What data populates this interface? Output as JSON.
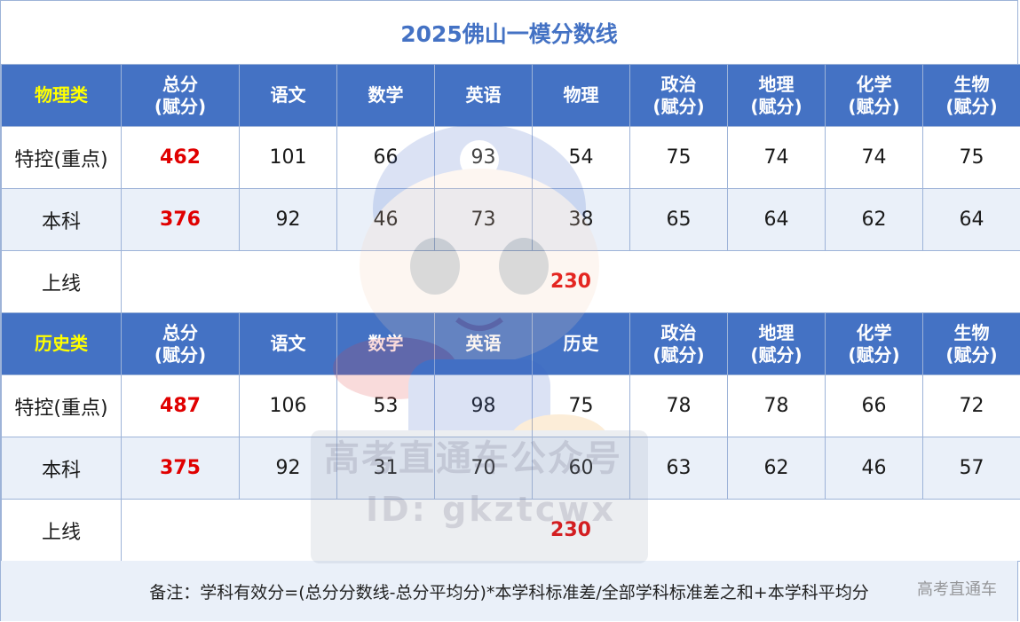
{
  "title": "2025佛山一模分数线",
  "physics": {
    "header": [
      "物理类",
      "总分\n(赋分)",
      "语文",
      "数学",
      "英语",
      "物理",
      "政治\n(赋分)",
      "地理\n(赋分)",
      "化学\n(赋分)",
      "生物\n(赋分)"
    ],
    "rows": [
      {
        "label": "特控(重点)",
        "total": "462",
        "scores": [
          "101",
          "66",
          "93",
          "54",
          "75",
          "74",
          "74",
          "75"
        ]
      },
      {
        "label": "本科",
        "total": "376",
        "scores": [
          "92",
          "46",
          "73",
          "38",
          "65",
          "64",
          "62",
          "64"
        ]
      }
    ],
    "line": {
      "label": "上线",
      "value": "230"
    }
  },
  "history": {
    "header": [
      "历史类",
      "总分\n(赋分)",
      "语文",
      "数学",
      "英语",
      "历史",
      "政治\n(赋分)",
      "地理\n(赋分)",
      "化学\n(赋分)",
      "生物\n(赋分)"
    ],
    "rows": [
      {
        "label": "特控(重点)",
        "total": "487",
        "scores": [
          "106",
          "53",
          "98",
          "75",
          "78",
          "78",
          "66",
          "72"
        ]
      },
      {
        "label": "本科",
        "total": "375",
        "scores": [
          "92",
          "31",
          "70",
          "60",
          "63",
          "62",
          "46",
          "57"
        ]
      }
    ],
    "line": {
      "label": "上线",
      "value": "230"
    }
  },
  "note": "备注：学科有效分=(总分分数线-总分平均分)*本学科标准差/全部学科标准差之和+本学科平均分",
  "watermark": {
    "brand": "高考直通车",
    "account": "高考直通车公众号",
    "id": "ID: gkztcwx"
  },
  "colors": {
    "header_bg": "#4472c4",
    "category_text": "#ffff00",
    "highlight": "#e00000",
    "stripe": "#eaf0f9"
  }
}
